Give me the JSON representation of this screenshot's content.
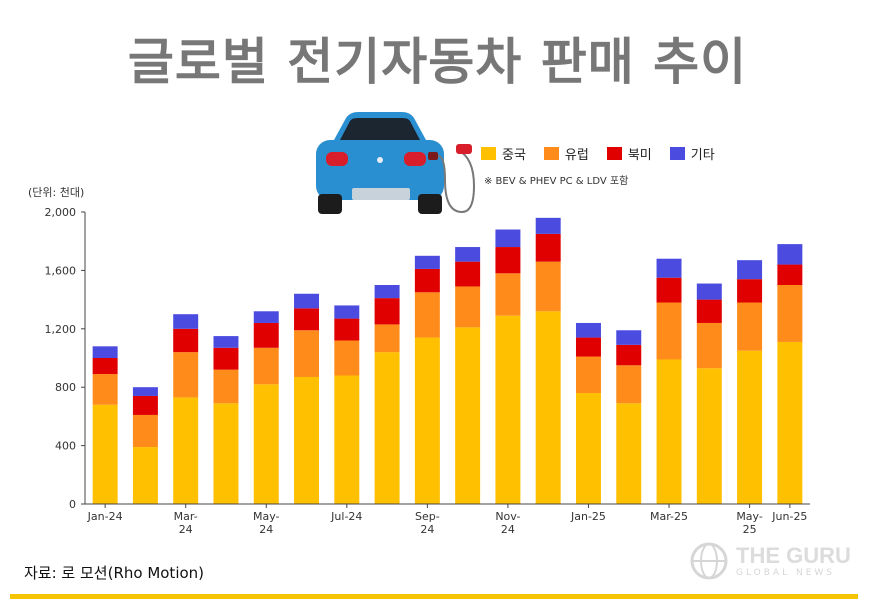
{
  "page": {
    "title": "글로벌 전기자동차 판매 추이",
    "unit": "(단위: 천대)",
    "note": "※ BEV & PHEV PC & LDV 포함",
    "source": "자료: 로 모션(Rho Motion)",
    "watermark_main": "THE GURU",
    "watermark_sub": "GLOBAL NEWS",
    "icons": [
      "ev-car-icon",
      "globe-logo-icon"
    ]
  },
  "chart_data": {
    "type": "bar",
    "stacked": true,
    "title": "글로벌 전기자동차 판매 추이",
    "ylabel": "(단위: 천대)",
    "ylim": [
      0,
      2000
    ],
    "yticks": [
      0,
      400,
      800,
      1200,
      1600,
      2000
    ],
    "ytick_labels": [
      "0",
      "400",
      "800",
      "1,200",
      "1,600",
      "2,000"
    ],
    "grid": false,
    "legend_position": "top-right",
    "categories": [
      "Jan-24",
      "Feb-24",
      "Mar-24",
      "Apr-24",
      "May-24",
      "Jun-24",
      "Jul-24",
      "Aug-24",
      "Sep-24",
      "Oct-24",
      "Nov-24",
      "Dec-24",
      "Jan-25",
      "Feb-25",
      "Mar-25",
      "Apr-25",
      "May-25",
      "Jun-25"
    ],
    "x_tick_labels": [
      "Jan-24",
      "",
      "Mar-\n24",
      "",
      "May-\n24",
      "",
      "Jul-24",
      "",
      "Sep-\n24",
      "",
      "Nov-\n24",
      "",
      "Jan-25",
      "",
      "Mar-25",
      "",
      "May-\n25",
      "Jun-25"
    ],
    "series": [
      {
        "name": "중국",
        "color": "#FFC000",
        "values": [
          680,
          390,
          730,
          690,
          820,
          870,
          880,
          1040,
          1140,
          1210,
          1290,
          1320,
          760,
          690,
          990,
          930,
          1050,
          1110
        ]
      },
      {
        "name": "유럽",
        "color": "#FF8C1A",
        "values": [
          210,
          220,
          310,
          230,
          250,
          320,
          240,
          190,
          310,
          280,
          290,
          340,
          250,
          260,
          390,
          310,
          330,
          390
        ]
      },
      {
        "name": "북미",
        "color": "#E00000",
        "values": [
          110,
          130,
          160,
          150,
          170,
          150,
          150,
          180,
          160,
          170,
          180,
          190,
          130,
          140,
          170,
          160,
          160,
          140
        ]
      },
      {
        "name": "기타",
        "color": "#4B4BE0",
        "values": [
          80,
          60,
          100,
          80,
          80,
          100,
          90,
          90,
          90,
          100,
          120,
          110,
          100,
          100,
          130,
          110,
          130,
          140
        ]
      }
    ]
  }
}
